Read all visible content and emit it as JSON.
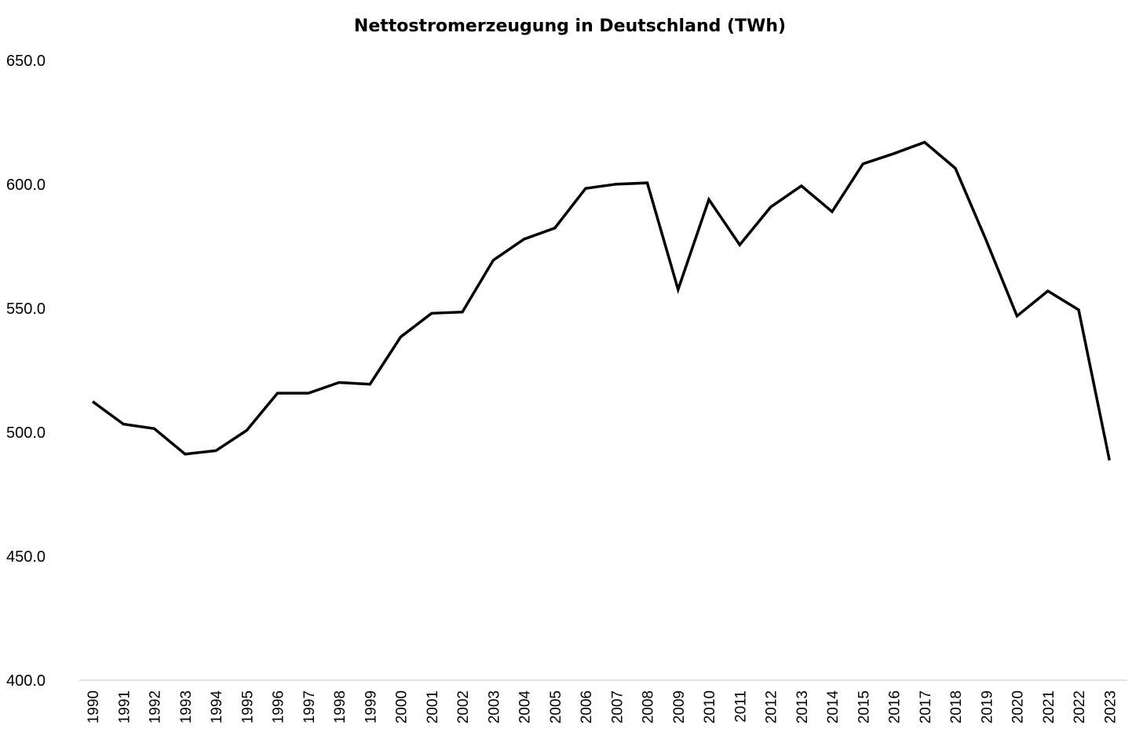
{
  "chart_data": {
    "type": "line",
    "title": "Nettostromerzeugung in Deutschland (TWh)",
    "xlabel": "",
    "ylabel": "",
    "categories": [
      "1990",
      "1991",
      "1992",
      "1993",
      "1994",
      "1995",
      "1996",
      "1997",
      "1998",
      "1999",
      "2000",
      "2001",
      "2002",
      "2003",
      "2004",
      "2005",
      "2006",
      "2007",
      "2008",
      "2009",
      "2010",
      "2011",
      "2012",
      "2013",
      "2014",
      "2015",
      "2016",
      "2017",
      "2018",
      "2019",
      "2020",
      "2021",
      "2022",
      "2023"
    ],
    "values": [
      512.4,
      503.3,
      501.5,
      491.2,
      492.6,
      500.8,
      515.8,
      515.8,
      520.1,
      519.4,
      538.5,
      548.0,
      548.5,
      569.4,
      577.9,
      582.4,
      598.4,
      600.1,
      600.6,
      557.6,
      593.9,
      575.6,
      590.8,
      599.4,
      589.0,
      608.3,
      612.4,
      617.0,
      606.5,
      577.4,
      546.9,
      557.0,
      549.4,
      488.7
    ],
    "yticks": [
      "650.0",
      "600.0",
      "550.0",
      "500.0",
      "450.0",
      "400.0"
    ],
    "ylim": [
      400,
      650
    ],
    "grid": false,
    "line_color": "#000000",
    "axis_color": "#d9d9d9"
  }
}
